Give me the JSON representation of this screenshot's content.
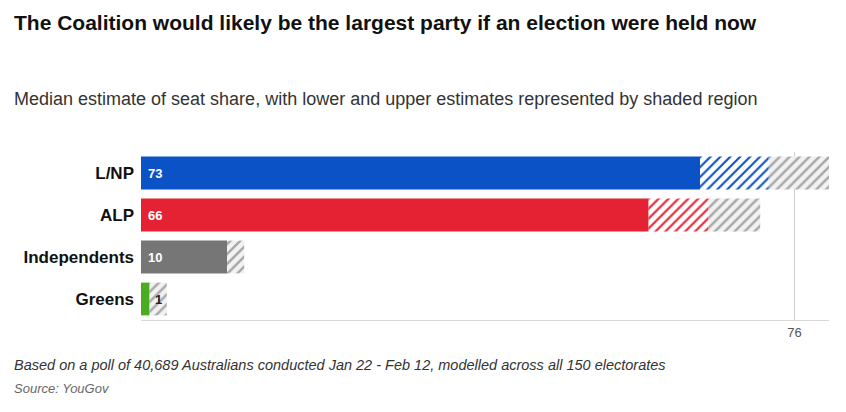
{
  "chart_data": {
    "type": "bar",
    "title": "The Coalition would likely be the largest party if an election were held now",
    "subtitle": "Median estimate of seat share, with lower and upper estimates represented by shaded region",
    "footnote": "Based on a poll of 40,689 Australians conducted Jan 22 - Feb 12, modelled across all 150 electorates",
    "source": "Source: YouGov",
    "categories": [
      "L/NP",
      "ALP",
      "Independents",
      "Greens"
    ],
    "values": [
      73,
      66,
      10,
      1
    ],
    "lower": [
      65,
      59,
      10,
      1
    ],
    "upper": [
      80,
      72,
      12,
      3
    ],
    "colors": [
      "#0b52c6",
      "#e52233",
      "#767676",
      "#4aad1f"
    ],
    "orientation": "horizontal",
    "data_labels": true,
    "xlim": [
      0,
      80
    ],
    "xticks": [
      76
    ],
    "grid": true
  }
}
